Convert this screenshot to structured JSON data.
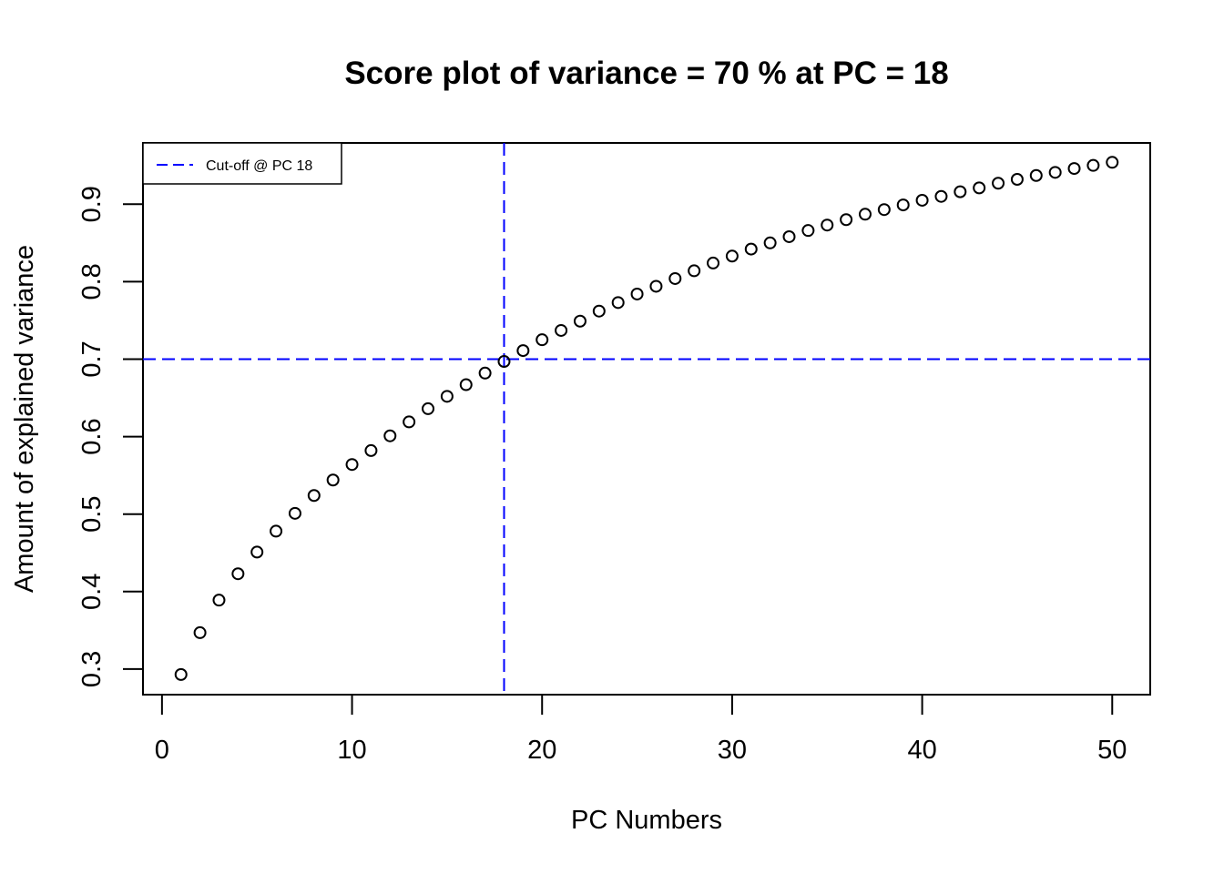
{
  "chart_data": {
    "type": "scatter",
    "title": "Score plot of variance = 70 % at PC = 18",
    "xlabel": "PC Numbers",
    "ylabel": "Amount of explained variance",
    "xlim": [
      -1,
      52
    ],
    "ylim": [
      0.267,
      0.979
    ],
    "x_ticks": [
      0,
      10,
      20,
      30,
      40,
      50
    ],
    "y_ticks": [
      0.3,
      0.4,
      0.5,
      0.6,
      0.7,
      0.8,
      0.9
    ],
    "x_tick_labels": [
      "0",
      "10",
      "20",
      "30",
      "40",
      "50"
    ],
    "y_tick_labels": [
      "0.3",
      "0.4",
      "0.5",
      "0.6",
      "0.7",
      "0.8",
      "0.9"
    ],
    "grid": false,
    "legend": {
      "position": "top-left",
      "entries": [
        {
          "label": "Cut-off @ PC 18",
          "color": "#0000ff",
          "style": "dashed"
        }
      ]
    },
    "series": [
      {
        "marker": "open-circle",
        "color": "#000000",
        "x": [
          1,
          2,
          3,
          4,
          5,
          6,
          7,
          8,
          9,
          10,
          11,
          12,
          13,
          14,
          15,
          16,
          17,
          18,
          19,
          20,
          21,
          22,
          23,
          24,
          25,
          26,
          27,
          28,
          29,
          30,
          31,
          32,
          33,
          34,
          35,
          36,
          37,
          38,
          39,
          40,
          41,
          42,
          43,
          44,
          45,
          46,
          47,
          48,
          49,
          50
        ],
        "y": [
          0.293,
          0.347,
          0.389,
          0.423,
          0.451,
          0.478,
          0.501,
          0.524,
          0.544,
          0.564,
          0.582,
          0.601,
          0.619,
          0.636,
          0.652,
          0.667,
          0.682,
          0.697,
          0.711,
          0.725,
          0.737,
          0.749,
          0.762,
          0.773,
          0.784,
          0.794,
          0.804,
          0.814,
          0.824,
          0.833,
          0.842,
          0.85,
          0.858,
          0.866,
          0.873,
          0.88,
          0.887,
          0.893,
          0.899,
          0.905,
          0.91,
          0.916,
          0.921,
          0.927,
          0.932,
          0.937,
          0.941,
          0.946,
          0.95,
          0.954
        ]
      }
    ],
    "reference_lines": [
      {
        "orientation": "vertical",
        "value": 18,
        "color": "#0000ff",
        "style": "dashed"
      },
      {
        "orientation": "horizontal",
        "value": 0.7,
        "color": "#0000ff",
        "style": "dashed"
      }
    ]
  }
}
